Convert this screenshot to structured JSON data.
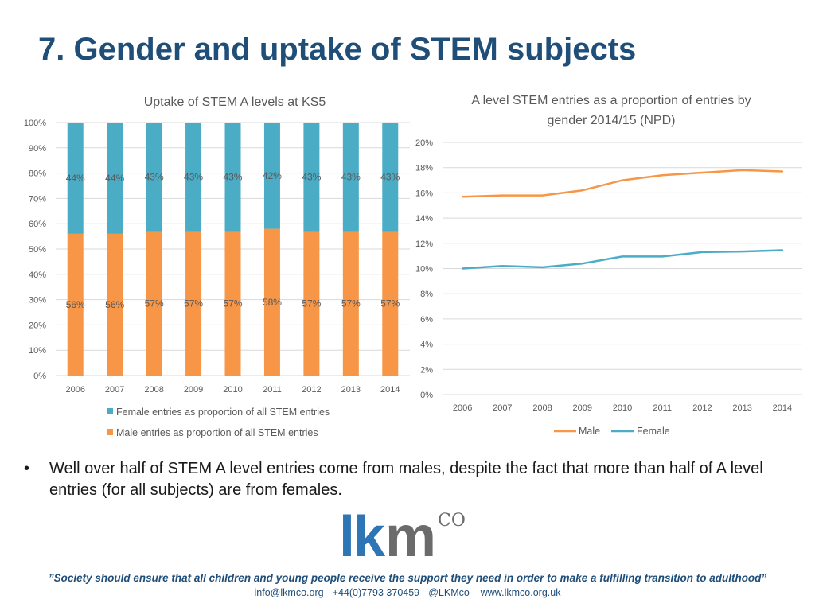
{
  "page": {
    "title": "7. Gender and uptake of STEM subjects",
    "bullet_mark": "•",
    "bullet": "Well over half of STEM A level entries come from males, despite the fact that more than half of A level entries (for all subjects) are from females.",
    "quote": "”Society should ensure that all children and young people receive the support they need in order to make a fulfilling transition to adulthood”",
    "contact": "info@lkmco.org - +44(0)7793 370459 - @LKMco – www.lkmco.org.uk",
    "logo": {
      "lk": "lk",
      "m": "m",
      "co": "CO"
    }
  },
  "colors": {
    "female": "#4BACC6",
    "male": "#F79646",
    "grid": "#D9D9D9",
    "text": "#595959",
    "title": "#1F4E79"
  },
  "chart_data": [
    {
      "type": "bar",
      "stacked": true,
      "title": "Uptake of STEM A levels at KS5",
      "categories": [
        "2006",
        "2007",
        "2008",
        "2009",
        "2010",
        "2011",
        "2012",
        "2013",
        "2014"
      ],
      "series": [
        {
          "name": "Male entries as proportion of all STEM entries",
          "values": [
            56,
            56,
            57,
            57,
            57,
            58,
            57,
            57,
            57
          ],
          "labels": [
            "56%",
            "56%",
            "57%",
            "57%",
            "57%",
            "58%",
            "57%",
            "57%",
            "57%"
          ]
        },
        {
          "name": "Female entries as proportion of all STEM entries",
          "values": [
            44,
            44,
            43,
            43,
            43,
            42,
            43,
            43,
            43
          ],
          "labels": [
            "44%",
            "44%",
            "43%",
            "43%",
            "43%",
            "42%",
            "43%",
            "43%",
            "43%"
          ]
        }
      ],
      "ylim": [
        0,
        100
      ],
      "yticks": [
        "0%",
        "10%",
        "20%",
        "30%",
        "40%",
        "50%",
        "60%",
        "70%",
        "80%",
        "90%",
        "100%"
      ],
      "legend": "bottom"
    },
    {
      "type": "line",
      "title_lines": [
        "A level STEM entries as a proportion of entries by",
        "gender 2014/15 (NPD)"
      ],
      "categories": [
        "2006",
        "2007",
        "2008",
        "2009",
        "2010",
        "2011",
        "2012",
        "2013",
        "2014"
      ],
      "series": [
        {
          "name": "Male",
          "values": [
            15.7,
            15.8,
            15.8,
            16.2,
            17.0,
            17.4,
            17.6,
            17.8,
            17.7
          ]
        },
        {
          "name": "Female",
          "values": [
            10.0,
            10.2,
            10.1,
            10.4,
            10.95,
            10.95,
            11.3,
            11.35,
            11.45
          ]
        }
      ],
      "ylim": [
        0,
        20
      ],
      "yticks": [
        "0%",
        "2%",
        "4%",
        "6%",
        "8%",
        "10%",
        "12%",
        "14%",
        "16%",
        "18%",
        "20%"
      ],
      "legend": "bottom"
    }
  ]
}
